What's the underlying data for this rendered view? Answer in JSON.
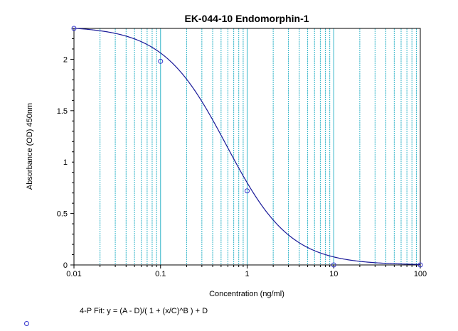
{
  "chart_data": {
    "type": "scatter",
    "title": "EK-044-10  Endomorphin-1",
    "xlabel": "Concentration (ng/ml)",
    "ylabel": "Absorbance (OD) 450nm",
    "x_scale": "log",
    "xlim": [
      0.01,
      100
    ],
    "ylim": [
      0,
      2.3
    ],
    "x_ticks": [
      "0.01",
      "0.1",
      "1",
      "10",
      "100"
    ],
    "y_ticks": [
      "0",
      "0.5",
      "1",
      "1.5",
      "2"
    ],
    "grid": "vertical minor",
    "series": [
      {
        "kind": "points",
        "x": [
          0.01,
          0.1,
          1,
          10,
          100
        ],
        "y": [
          2.3,
          1.98,
          0.72,
          0.0,
          0.0
        ]
      }
    ],
    "fit": {
      "model": "4-P",
      "A": 2.32,
      "B": 1.18,
      "C": 0.58,
      "D": 0.0
    },
    "fit_label": "4-P Fit: y = (A - D)/( 1 + (x/C)^B ) + D",
    "colors": {
      "curve": "#1a1a99",
      "grid": "#33b5c9",
      "points": "#3333cc"
    }
  }
}
